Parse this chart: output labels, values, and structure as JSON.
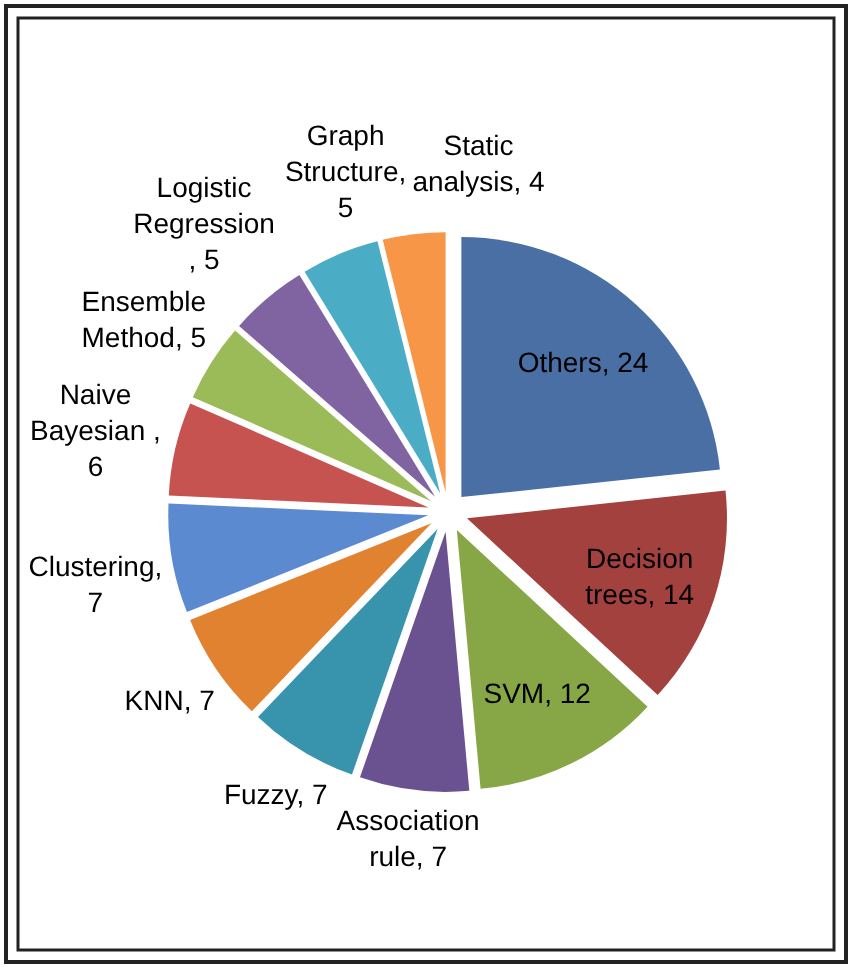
{
  "chart_data": {
    "type": "pie",
    "categories": [
      "Others",
      "Decision trees",
      "SVM",
      "Association rule",
      "Fuzzy",
      "KNN",
      "Clustering",
      "Naive Bayesian ",
      "Ensemble Method",
      "Logistic Regression ",
      "Graph Structure",
      "Static analysis"
    ],
    "values": [
      24,
      14,
      12,
      7,
      7,
      7,
      7,
      6,
      5,
      5,
      5,
      4
    ],
    "value_labels": [
      ", 24",
      ", 14",
      ", 12",
      ", 7",
      ", 7",
      ", 7",
      ", 7",
      ", 6",
      ", 5",
      ", 5",
      ", 5",
      ", 4"
    ],
    "colors": [
      "#4a6fa5",
      "#a3413e",
      "#87a645",
      "#6a5190",
      "#3893ad",
      "#e0822f",
      "#5b8ad0",
      "#c65350",
      "#9bbb59",
      "#8064a2",
      "#4bacc6",
      "#f79646"
    ]
  }
}
